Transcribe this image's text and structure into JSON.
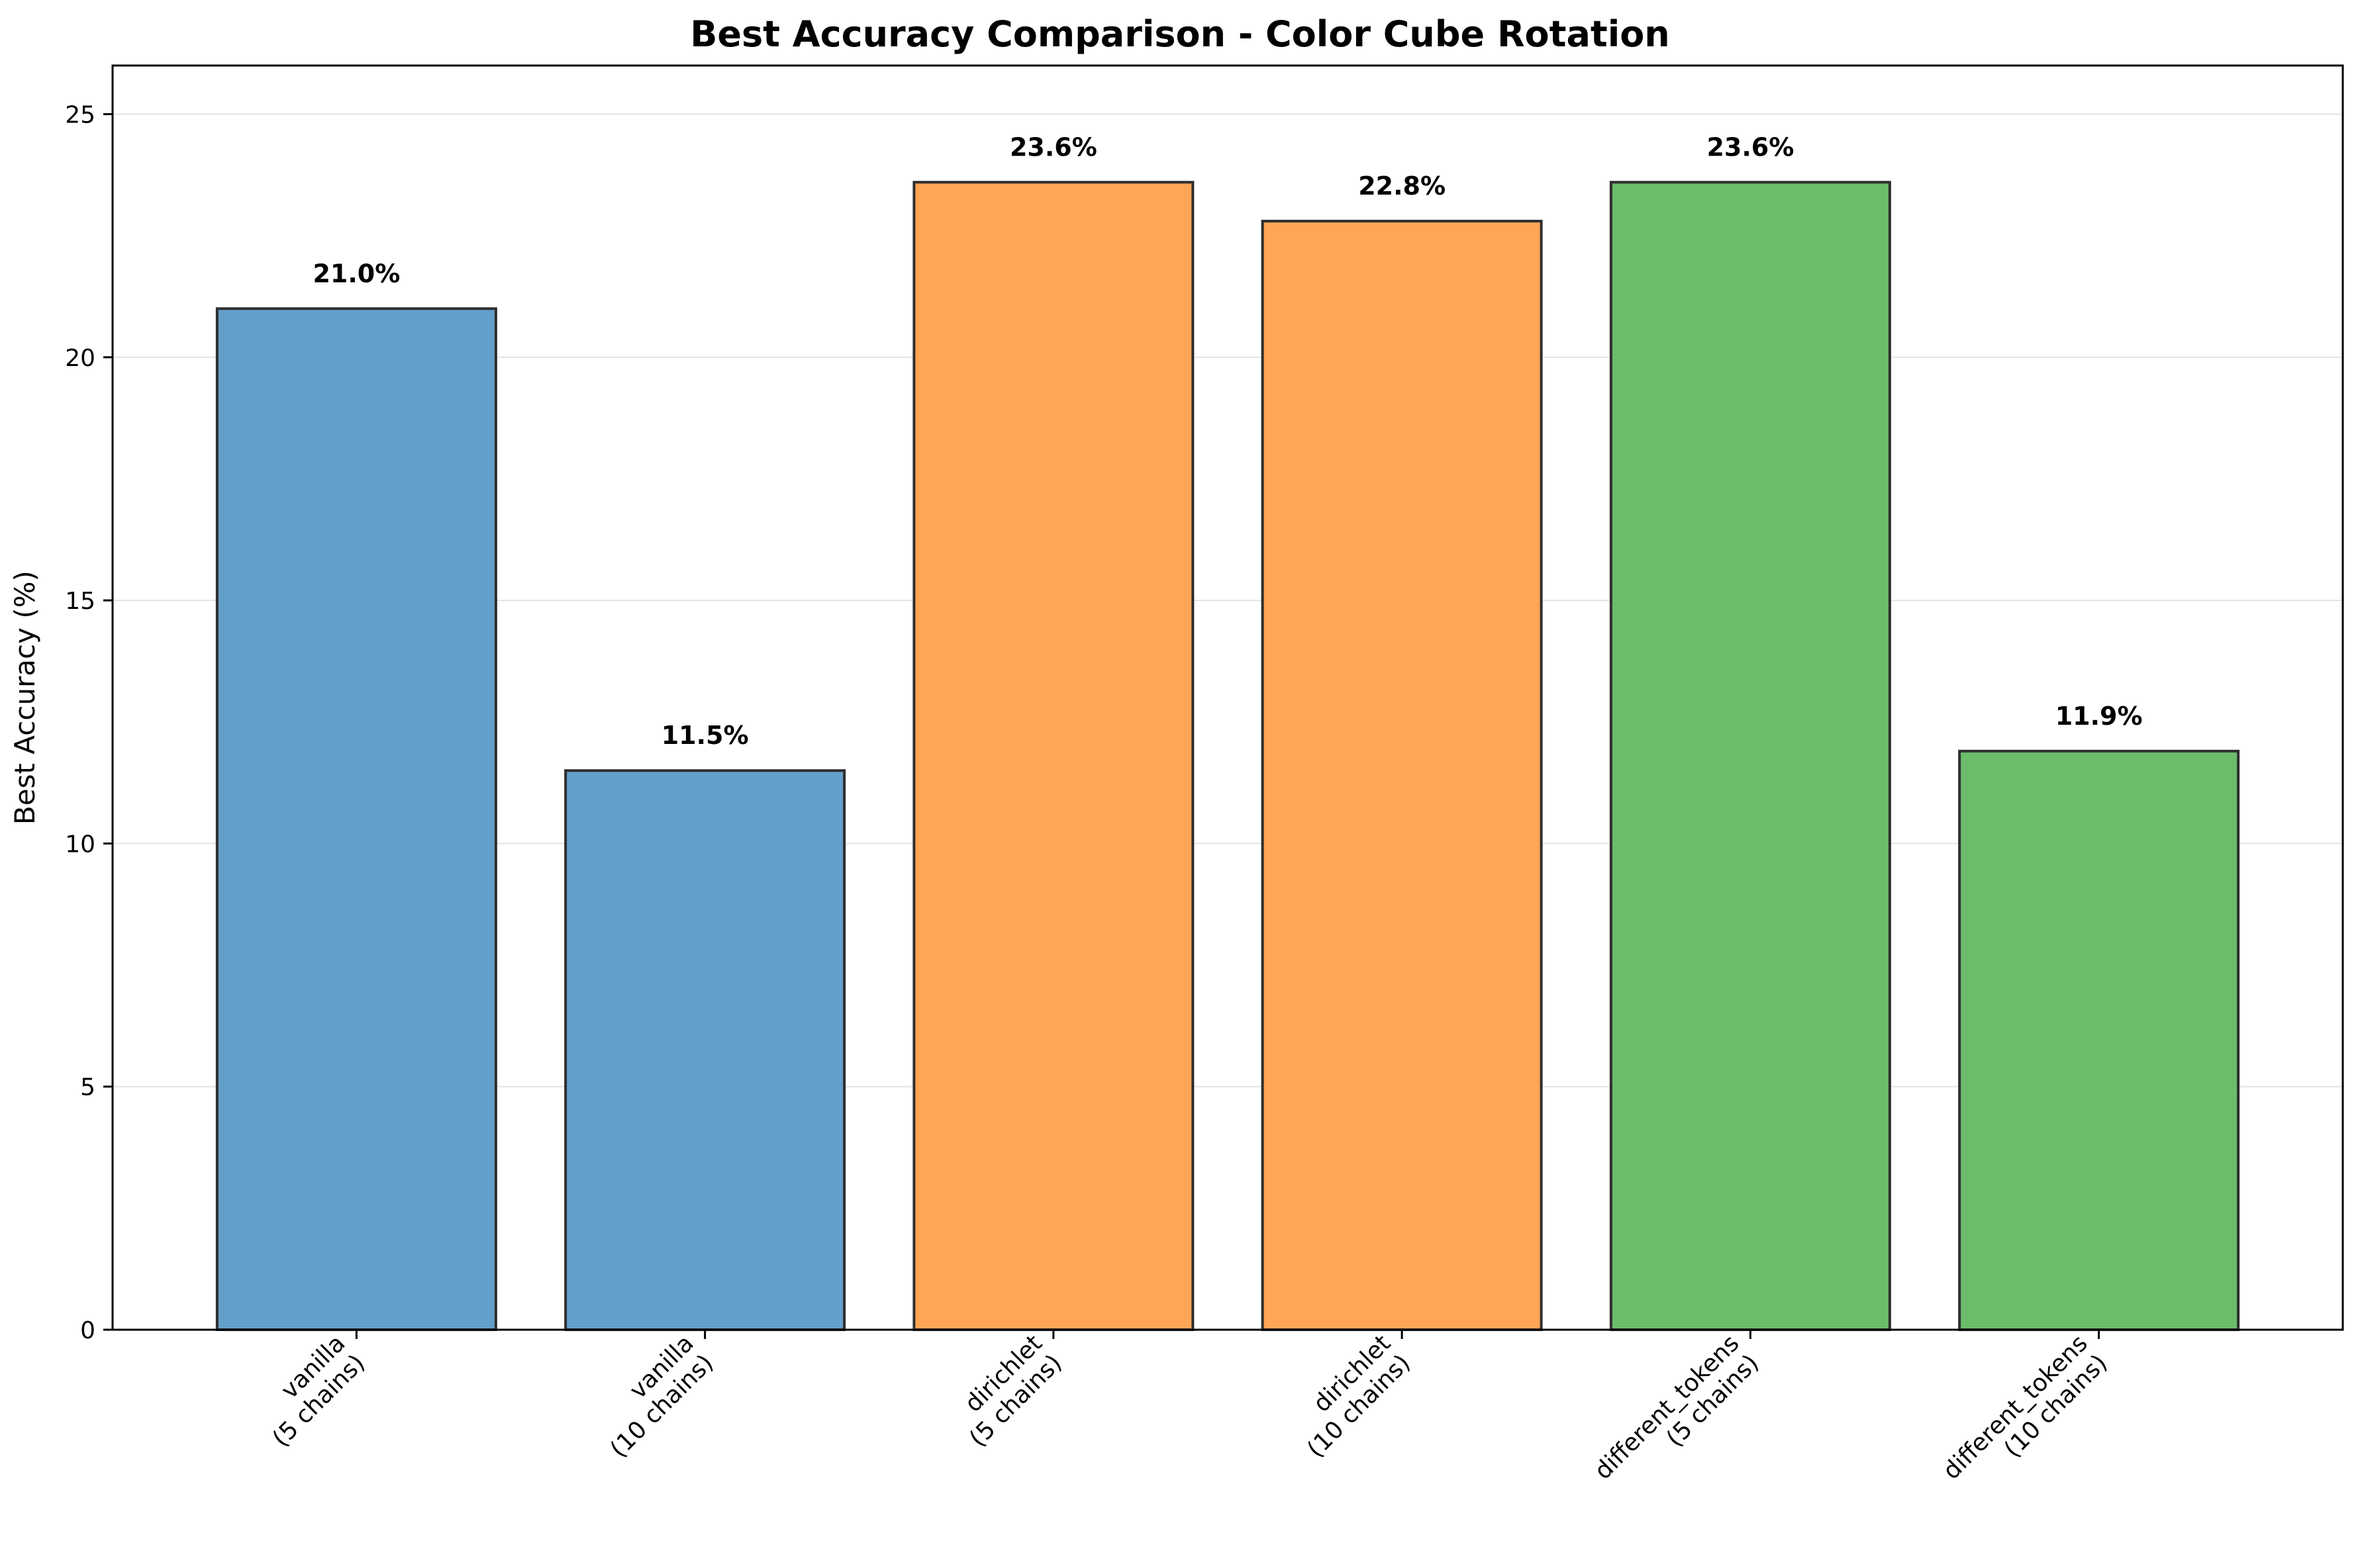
{
  "chart_data": {
    "type": "bar",
    "title": "Best Accuracy Comparison - Color Cube Rotation",
    "xlabel": "",
    "ylabel": "Best Accuracy (%)",
    "ylim": [
      0,
      26
    ],
    "yticks": [
      0,
      5,
      10,
      15,
      20,
      25
    ],
    "grid": "y-only",
    "categories": [
      [
        "vanilla",
        "(5 chains)"
      ],
      [
        "vanilla",
        "(10 chains)"
      ],
      [
        "dirichlet",
        "(5 chains)"
      ],
      [
        "dirichlet",
        "(10 chains)"
      ],
      [
        "different_tokens",
        "(5 chains)"
      ],
      [
        "different_tokens",
        "(10 chains)"
      ]
    ],
    "values": [
      21.0,
      11.5,
      23.6,
      22.8,
      23.6,
      11.9
    ],
    "value_labels": [
      "21.0%",
      "11.5%",
      "23.6%",
      "22.8%",
      "23.6%",
      "11.9%"
    ],
    "colors": [
      "#629fca",
      "#629fca",
      "#ffa556",
      "#ffa556",
      "#6bbc6b",
      "#6bbc6b"
    ]
  }
}
